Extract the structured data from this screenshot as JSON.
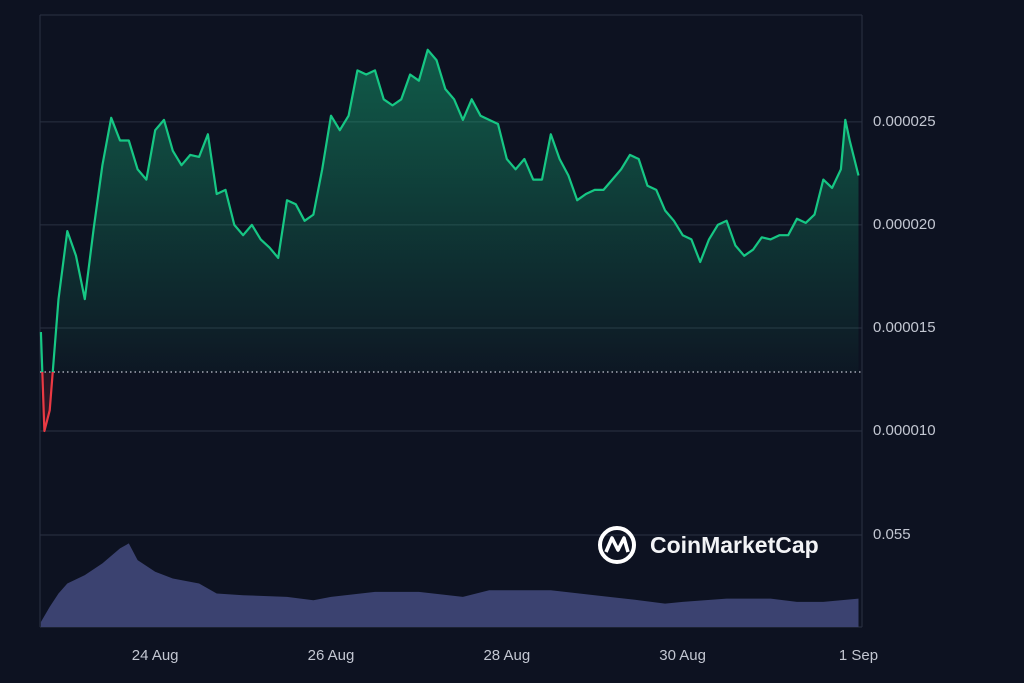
{
  "chart_data": [
    {
      "type": "line",
      "x": [
        22.7,
        22.74,
        22.8,
        22.9,
        23.0,
        23.1,
        23.2,
        23.3,
        23.4,
        23.5,
        23.6,
        23.7,
        23.8,
        23.9,
        24.0,
        24.1,
        24.2,
        24.3,
        24.4,
        24.5,
        24.6,
        24.7,
        24.8,
        24.9,
        25.0,
        25.1,
        25.2,
        25.3,
        25.4,
        25.5,
        25.6,
        25.7,
        25.8,
        25.9,
        26.0,
        26.1,
        26.2,
        26.3,
        26.4,
        26.5,
        26.6,
        26.7,
        26.8,
        26.9,
        27.0,
        27.1,
        27.2,
        27.3,
        27.4,
        27.5,
        27.6,
        27.7,
        27.8,
        27.9,
        28.0,
        28.1,
        28.2,
        28.3,
        28.4,
        28.5,
        28.6,
        28.7,
        28.8,
        28.9,
        29.0,
        29.1,
        29.2,
        29.3,
        29.4,
        29.5,
        29.6,
        29.7,
        29.8,
        29.9,
        30.0,
        30.1,
        30.2,
        30.3,
        30.4,
        30.5,
        30.6,
        30.7,
        30.8,
        30.9,
        31.0,
        31.1,
        31.2,
        31.3,
        31.4,
        31.5,
        31.6,
        31.7,
        31.8,
        31.85,
        31.9,
        32.0
      ],
      "series": [
        {
          "color": "#16c784",
          "down_color": "#ea3943",
          "values": [
            1.48e-05,
            1e-05,
            1.1e-05,
            1.64e-05,
            1.97e-05,
            1.85e-05,
            1.64e-05,
            1.98e-05,
            2.29e-05,
            2.52e-05,
            2.41e-05,
            2.41e-05,
            2.27e-05,
            2.22e-05,
            2.46e-05,
            2.51e-05,
            2.36e-05,
            2.29e-05,
            2.34e-05,
            2.33e-05,
            2.44e-05,
            2.15e-05,
            2.17e-05,
            2e-05,
            1.95e-05,
            2e-05,
            1.93e-05,
            1.89e-05,
            1.84e-05,
            2.12e-05,
            2.1e-05,
            2.02e-05,
            2.05e-05,
            2.27e-05,
            2.53e-05,
            2.46e-05,
            2.53e-05,
            2.75e-05,
            2.73e-05,
            2.75e-05,
            2.61e-05,
            2.58e-05,
            2.61e-05,
            2.73e-05,
            2.7e-05,
            2.85e-05,
            2.8e-05,
            2.66e-05,
            2.61e-05,
            2.51e-05,
            2.61e-05,
            2.53e-05,
            2.51e-05,
            2.49e-05,
            2.32e-05,
            2.27e-05,
            2.32e-05,
            2.22e-05,
            2.22e-05,
            2.44e-05,
            2.32e-05,
            2.24e-05,
            2.12e-05,
            2.15e-05,
            2.17e-05,
            2.17e-05,
            2.22e-05,
            2.27e-05,
            2.34e-05,
            2.32e-05,
            2.19e-05,
            2.17e-05,
            2.07e-05,
            2.02e-05,
            1.95e-05,
            1.93e-05,
            1.82e-05,
            1.93e-05,
            2e-05,
            2.02e-05,
            1.9e-05,
            1.85e-05,
            1.88e-05,
            1.94e-05,
            1.93e-05,
            1.95e-05,
            1.95e-05,
            2.03e-05,
            2.01e-05,
            2.05e-05,
            2.22e-05,
            2.18e-05,
            2.27e-05,
            2.51e-05,
            2.41e-05,
            2.24e-05
          ]
        }
      ],
      "baseline": 1.286e-05,
      "xlim": [
        22.69,
        32.04
      ],
      "ylim": [
        4.95e-06,
        3.019e-05
      ],
      "yticks": [
        {
          "value": 1e-05,
          "label": "0.000010"
        },
        1.5e-05,
        {
          "value": 2e-05,
          "label": "0.000020"
        },
        2.5e-05
      ],
      "grid": true
    },
    {
      "type": "area",
      "x": [
        22.7,
        22.8,
        22.9,
        23.0,
        23.2,
        23.4,
        23.6,
        23.7,
        23.8,
        24.0,
        24.2,
        24.5,
        24.7,
        25.0,
        25.5,
        25.8,
        26.0,
        26.5,
        27.0,
        27.5,
        27.8,
        28.5,
        29.0,
        29.5,
        29.8,
        30.0,
        30.5,
        31.0,
        31.3,
        31.6,
        32.0
      ],
      "values": [
        0.003,
        0.012,
        0.02,
        0.026,
        0.031,
        0.038,
        0.047,
        0.05,
        0.04,
        0.033,
        0.029,
        0.026,
        0.02,
        0.019,
        0.018,
        0.016,
        0.018,
        0.021,
        0.021,
        0.018,
        0.022,
        0.022,
        0.019,
        0.016,
        0.014,
        0.015,
        0.017,
        0.017,
        0.015,
        0.015,
        0.017
      ],
      "color": "#3b4270",
      "xlim": [
        22.69,
        32.04
      ],
      "ylim": [
        0,
        0.055
      ],
      "yticks": [
        0.055
      ],
      "xticks": [
        {
          "value": 24,
          "label": "24 Aug"
        },
        {
          "value": 26,
          "label": "26 Aug"
        },
        {
          "value": 28,
          "label": "28 Aug"
        },
        {
          "value": 30,
          "label": "30 Aug"
        },
        {
          "value": 32,
          "label": "1 Sep"
        }
      ],
      "grid": true
    }
  ],
  "watermark": "CoinMarketCap"
}
